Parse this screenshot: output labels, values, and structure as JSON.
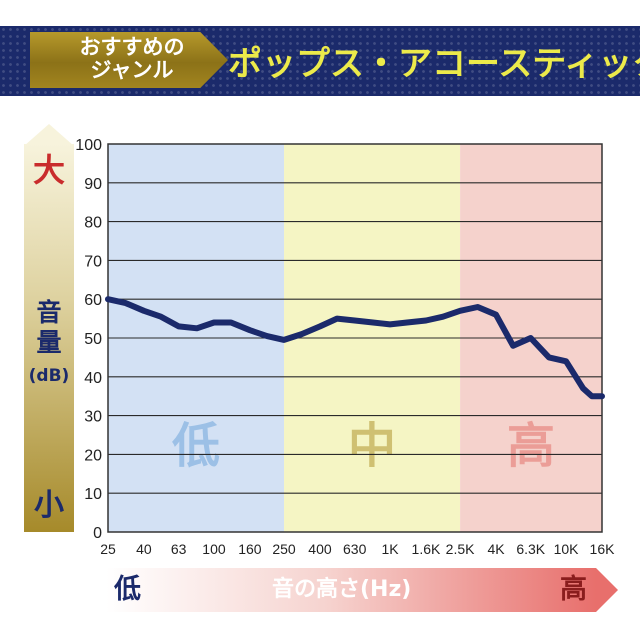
{
  "header": {
    "genre_label_line1": "おすすめの",
    "genre_label_line2": "ジャンル",
    "genre_name": "ポップス・アコースティック"
  },
  "volume_axis": {
    "label": "音量",
    "unit": "(dB)",
    "high": "大",
    "low": "小"
  },
  "pitch_axis": {
    "label": "音の高さ(Hz)",
    "low": "低",
    "high": "高"
  },
  "colors": {
    "banner": "#1b2a6b",
    "title": "#ecea4a",
    "line": "#1b2a6b",
    "low_band": "#d3e1f4",
    "mid_band": "#f5f5c4",
    "high_band": "#f5d2cc"
  },
  "chart_data": {
    "type": "line",
    "ylim": [
      0,
      100
    ],
    "yticks": [
      0,
      10,
      20,
      30,
      40,
      50,
      60,
      70,
      80,
      90,
      100
    ],
    "categories": [
      "25",
      "40",
      "63",
      "100",
      "160",
      "250",
      "400",
      "630",
      "1K",
      "1.6K",
      "2.5K",
      "4K",
      "6.3K",
      "10K",
      "16K"
    ],
    "grid": true,
    "bands": [
      {
        "label": "低",
        "from": "25",
        "to": "250",
        "color": "#d3e1f4",
        "text_color": "#9cc0e6"
      },
      {
        "label": "中",
        "from": "250",
        "to": "2.5K",
        "color": "#f5f5c4",
        "text_color": "#cfc072"
      },
      {
        "label": "高",
        "from": "2.5K",
        "to": "16K",
        "color": "#f5d2cc",
        "text_color": "#eb9d97"
      }
    ],
    "series": [
      {
        "values": [
          [
            25,
            60
          ],
          [
            31.5,
            59
          ],
          [
            40,
            57
          ],
          [
            50,
            55.5
          ],
          [
            63,
            53
          ],
          [
            80,
            52.5
          ],
          [
            100,
            54
          ],
          [
            125,
            54
          ],
          [
            160,
            52
          ],
          [
            200,
            50.5
          ],
          [
            250,
            49.5
          ],
          [
            315,
            51
          ],
          [
            400,
            53
          ],
          [
            500,
            55
          ],
          [
            630,
            54.5
          ],
          [
            800,
            54
          ],
          [
            1000,
            53.5
          ],
          [
            1250,
            54
          ],
          [
            1600,
            54.5
          ],
          [
            2000,
            55.5
          ],
          [
            2500,
            57
          ],
          [
            3150,
            58
          ],
          [
            4000,
            56
          ],
          [
            5000,
            48
          ],
          [
            6300,
            50
          ],
          [
            8000,
            45
          ],
          [
            10000,
            44
          ],
          [
            12500,
            37
          ],
          [
            14000,
            35
          ],
          [
            16000,
            35
          ]
        ]
      }
    ]
  }
}
